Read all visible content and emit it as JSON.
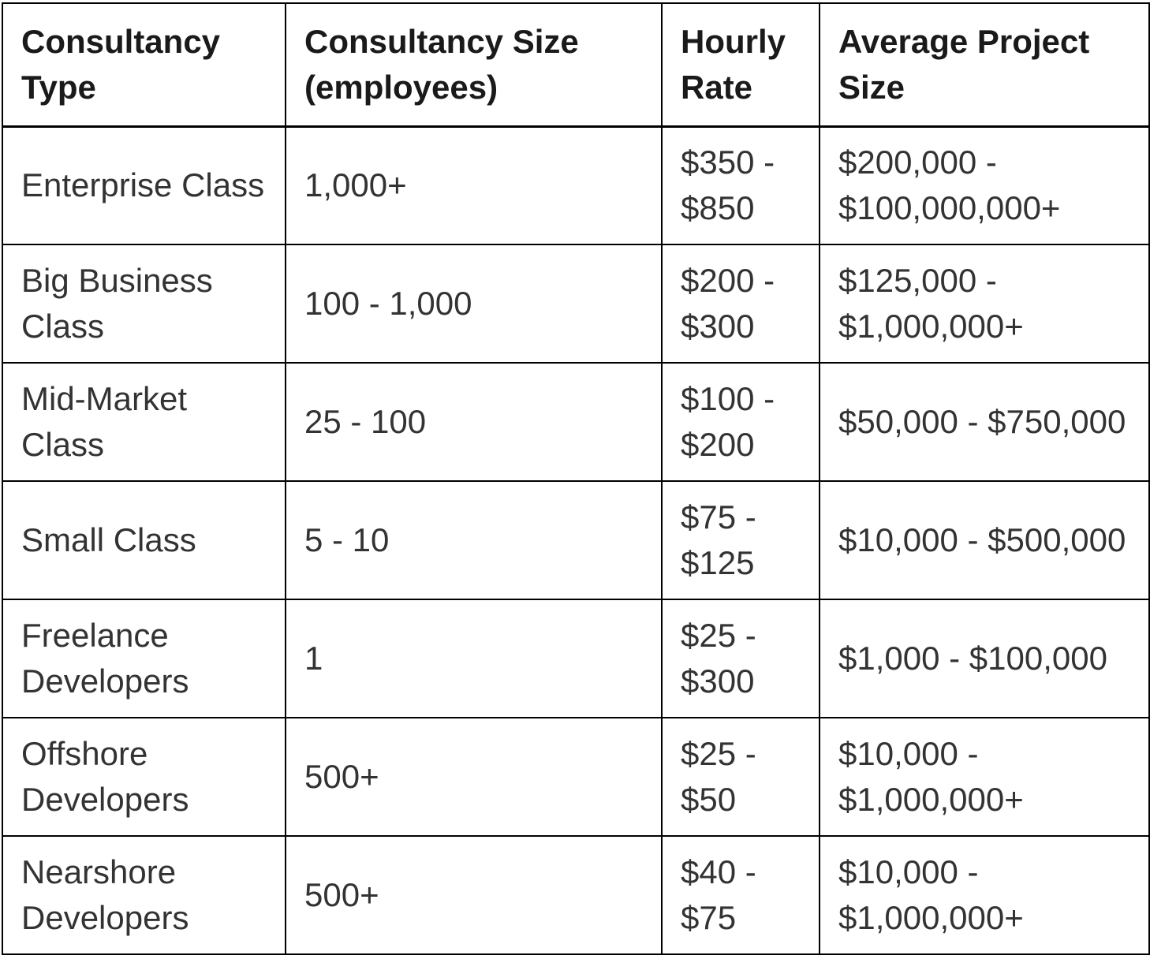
{
  "table": {
    "title": "consultancy-pricing-table",
    "headers": [
      "Consultancy Type",
      "Consultancy Size (employees)",
      "Hourly Rate",
      "Average Project Size"
    ],
    "rows": [
      [
        "Enterprise Class",
        "1,000+",
        "$350 - $850",
        "$200,000 - $100,000,000+"
      ],
      [
        "Big Business Class",
        "100 - 1,000",
        "$200 - $300",
        "$125,000 - $1,000,000+"
      ],
      [
        "Mid-Market Class",
        "25 - 100",
        "$100 - $200",
        "$50,000 - $750,000"
      ],
      [
        "Small Class",
        "5 - 10",
        "$75 - $125",
        "$10,000 - $500,000"
      ],
      [
        "Freelance Developers",
        "1",
        "$25 - $300",
        "$1,000 - $100,000"
      ],
      [
        "Offshore Developers",
        "500+",
        "$25 - $50",
        "$10,000 - $1,000,000+"
      ],
      [
        "Nearshore Developers",
        "500+",
        "$40 - $75",
        "$10,000 - $1,000,000+"
      ]
    ],
    "colors": {
      "border": "#000000",
      "header_text": "#1a1a1a",
      "body_text": "#333333",
      "background": "#ffffff"
    }
  }
}
